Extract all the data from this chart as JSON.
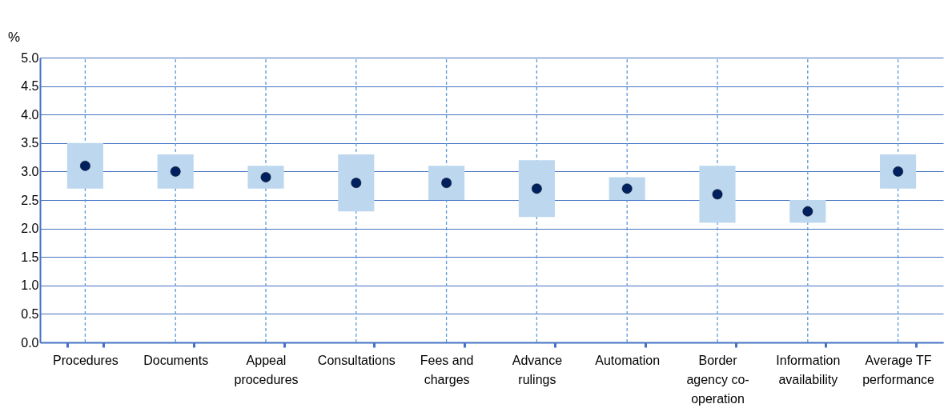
{
  "chart_data": {
    "type": "bar",
    "ylabel": "%",
    "categories": [
      "Procedures",
      "Documents",
      "Appeal procedures",
      "Consultations",
      "Fees and charges",
      "Advance rulings",
      "Automation",
      "Border agency co-operation",
      "Information availability",
      "Average TF performance"
    ],
    "series": [
      {
        "color": "#bdd7ee",
        "base": [
          2.7,
          2.7,
          2.7,
          2.3,
          2.5,
          2.2,
          2.5,
          2.1,
          2.1,
          2.7
        ],
        "values": [
          0.8,
          0.6,
          0.4,
          1.0,
          0.6,
          1.0,
          0.4,
          1.0,
          0.4,
          0.6
        ]
      },
      {
        "type": "scatter",
        "color": "#002060",
        "marker": "circle",
        "values": [
          3.1,
          3.0,
          2.9,
          2.8,
          2.8,
          2.7,
          2.7,
          2.6,
          2.3,
          3.0
        ]
      }
    ],
    "ylim": [
      0,
      5
    ],
    "yticks": [
      {
        "value": 0,
        "label": "0.0"
      },
      {
        "value": 0.5,
        "label": "0.5"
      },
      {
        "value": 1,
        "label": "1.0"
      },
      {
        "value": 1.5,
        "label": "1.5"
      },
      {
        "value": 2,
        "label": "2.0"
      },
      {
        "value": 2.5,
        "label": "2.5"
      },
      {
        "value": 3,
        "label": "3.0"
      },
      {
        "value": 3.5,
        "label": "3.5"
      },
      {
        "value": 4,
        "label": "4.0"
      },
      {
        "value": 4.5,
        "label": "4.5"
      },
      {
        "value": 5,
        "label": "5.0"
      }
    ],
    "grid": "y",
    "ref_lines": [
      {
        "axis": "x",
        "value": "Procedures",
        "color": "#5b9bd5",
        "line_style": "dashed"
      },
      {
        "axis": "x",
        "value": "Documents",
        "color": "#5b9bd5",
        "line_style": "dashed"
      },
      {
        "axis": "x",
        "value": "Appeal procedures",
        "color": "#5b9bd5",
        "line_style": "dashed"
      },
      {
        "axis": "x",
        "value": "Consultations",
        "color": "#5b9bd5",
        "line_style": "dashed"
      },
      {
        "axis": "x",
        "value": "Fees and charges",
        "color": "#5b9bd5",
        "line_style": "dashed"
      },
      {
        "axis": "x",
        "value": "Advance rulings",
        "color": "#5b9bd5",
        "line_style": "dashed"
      },
      {
        "axis": "x",
        "value": "Automation",
        "color": "#5b9bd5",
        "line_style": "dashed"
      },
      {
        "axis": "x",
        "value": "Border agency co-operation",
        "color": "#5b9bd5",
        "line_style": "dashed"
      },
      {
        "axis": "x",
        "value": "Information availability",
        "color": "#5b9bd5",
        "line_style": "dashed"
      },
      {
        "axis": "x",
        "value": "Average TF performance",
        "color": "#5b9bd5",
        "line_style": "dashed"
      }
    ]
  }
}
